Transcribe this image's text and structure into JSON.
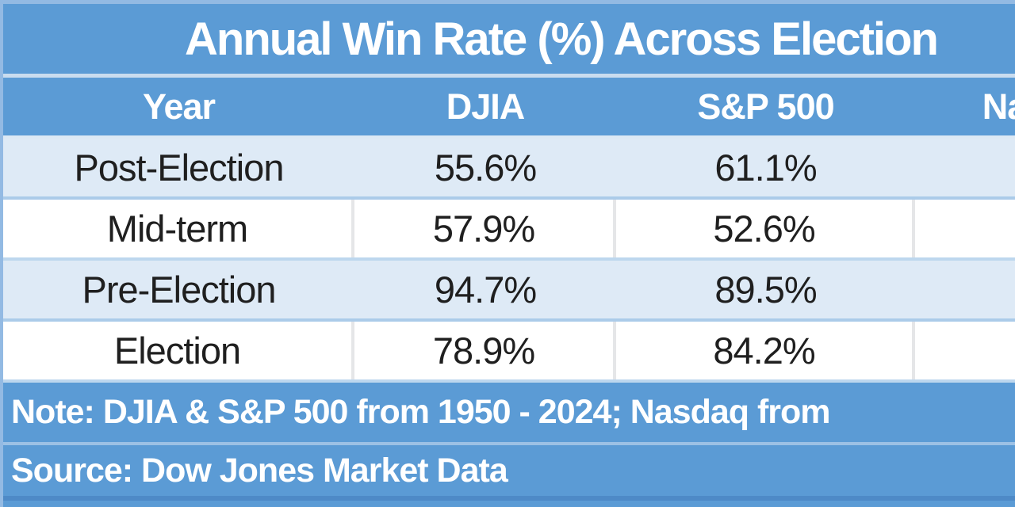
{
  "chart_data": {
    "type": "table",
    "title": "Annual Win Rate (%) Across Election",
    "columns": [
      "Year",
      "DJIA",
      "S&P 500",
      "Nasdaq"
    ],
    "rows": [
      [
        "Post-Election",
        "55.6%",
        "61.1%",
        ""
      ],
      [
        "Mid-term",
        "57.9%",
        "52.6%",
        ""
      ],
      [
        "Pre-Election",
        "94.7%",
        "89.5%",
        ""
      ],
      [
        "Election",
        "78.9%",
        "84.2%",
        ""
      ]
    ],
    "note": "Note: DJIA & S&P 500 from 1950 - 2024; Nasdaq from",
    "source": "Source: Dow Jones Market Data",
    "layout": {
      "banded_rows": true,
      "legend_position": "none",
      "grid": "horizontal-and-vertical-dividers"
    }
  },
  "colors": {
    "header_blue": "#5B9BD5",
    "band_light_blue": "#DEEAF6",
    "row_white": "#FFFFFF",
    "divider_blue": "#BDD7EE",
    "divider_gray": "#E5E6E8",
    "text_white": "#FFFFFF",
    "text_dark": "#1F1F1F"
  }
}
